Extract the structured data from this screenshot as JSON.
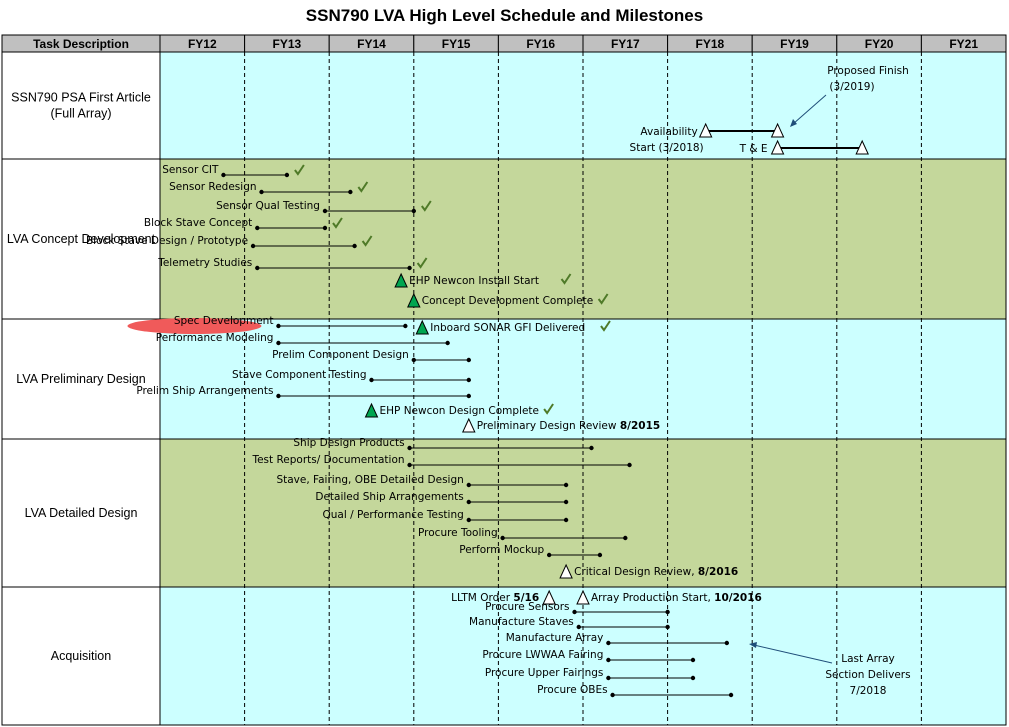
{
  "chart_data": {
    "type": "gantt",
    "title": "SSN790 LVA High Level Schedule and Milestones",
    "header_label": "Task Description",
    "periods": [
      "FY12",
      "FY13",
      "FY14",
      "FY15",
      "FY16",
      "FY17",
      "FY18",
      "FY19",
      "FY20",
      "FY21"
    ],
    "colors": {
      "cyan_band": "#ccffff",
      "green_band": "#c4d79b",
      "grid": "#000000",
      "check": "#4f7a28",
      "milestone_fill": "#00a550",
      "highlight": "#f05a5a",
      "arrow": "#1f4e79"
    },
    "sections": [
      {
        "name": "SSN790 PSA First Article (Full Array)",
        "lines": [
          "SSN790 PSA First Article",
          "(Full Array)"
        ],
        "band": "cyan"
      },
      {
        "name": "LVA Concept Development",
        "lines": [
          "LVA Concept Development"
        ],
        "band": "green"
      },
      {
        "name": "LVA Preliminary Design",
        "lines": [
          "LVA Preliminary Design"
        ],
        "band": "cyan"
      },
      {
        "name": "LVA Detailed Design",
        "lines": [
          "LVA Detailed Design"
        ],
        "band": "green"
      },
      {
        "name": "Acquisition",
        "lines": [
          "Acquisition"
        ],
        "band": "cyan"
      }
    ],
    "tasks": [
      {
        "section": 0,
        "label": "Availability",
        "label2": "Start (3/2018)",
        "start": 2018.45,
        "end": 2019.3,
        "end_marker": "open-triangle",
        "start_marker": "open-triangle",
        "labelSide": "left"
      },
      {
        "section": 0,
        "label": "T & E",
        "start": 2019.3,
        "end": 2020.3,
        "end_marker": "open-triangle",
        "start_marker": "open-triangle",
        "labelSide": "left"
      },
      {
        "section": 1,
        "label": "Sensor CIT",
        "start": 2012.75,
        "end": 2013.5,
        "check": true
      },
      {
        "section": 1,
        "label": "Sensor Redesign",
        "start": 2013.2,
        "end": 2014.25,
        "check": true
      },
      {
        "section": 1,
        "label": "Sensor Qual Testing",
        "start": 2013.95,
        "end": 2015.0,
        "check": true
      },
      {
        "section": 1,
        "label": "Block Stave Concept",
        "start": 2013.15,
        "end": 2013.95,
        "check": true
      },
      {
        "section": 1,
        "label": "Block Stave Design / Prototype",
        "start": 2013.1,
        "end": 2014.3,
        "check": true
      },
      {
        "section": 1,
        "label": "Telemetry Studies",
        "start": 2013.15,
        "end": 2014.95,
        "check": true
      },
      {
        "section": 1,
        "label": "EHP Newcon Install Start",
        "milestone": 2014.85,
        "marker": "green-triangle",
        "check": true
      },
      {
        "section": 1,
        "label": "Concept Development Complete",
        "milestone": 2015.0,
        "marker": "green-triangle",
        "check": true
      },
      {
        "section": 2,
        "label": "Spec Development",
        "start": 2013.4,
        "end": 2014.9,
        "highlight": true
      },
      {
        "section": 2,
        "label": "Inboard SONAR GFI Delivered",
        "milestone": 2015.1,
        "marker": "green-triangle",
        "check": true
      },
      {
        "section": 2,
        "label": "Performance Modeling",
        "start": 2013.4,
        "end": 2015.4
      },
      {
        "section": 2,
        "label": "Prelim Component Design",
        "start": 2015.0,
        "end": 2015.65
      },
      {
        "section": 2,
        "label": "Stave Component Testing",
        "start": 2014.5,
        "end": 2015.65
      },
      {
        "section": 2,
        "label": "Prelim Ship Arrangements",
        "start": 2013.4,
        "end": 2015.65
      },
      {
        "section": 2,
        "label": "EHP Newcon Design Complete",
        "milestone": 2014.5,
        "marker": "green-triangle",
        "check": true
      },
      {
        "section": 2,
        "label": "Preliminary Design Review",
        "labelBold": "8/2015",
        "milestone": 2015.65,
        "marker": "open-triangle"
      },
      {
        "section": 3,
        "label": "Ship Design Products",
        "start": 2014.95,
        "end": 2017.1
      },
      {
        "section": 3,
        "label": "Test Reports/ Documentation",
        "start": 2014.95,
        "end": 2017.55
      },
      {
        "section": 3,
        "label": "Stave, Fairing, OBE  Detailed Design",
        "start": 2015.65,
        "end": 2016.8
      },
      {
        "section": 3,
        "label": "Detailed Ship Arrangements",
        "start": 2015.65,
        "end": 2016.8
      },
      {
        "section": 3,
        "label": "Qual / Performance Testing",
        "start": 2015.65,
        "end": 2016.8
      },
      {
        "section": 3,
        "label": "Procure Tooling",
        "start": 2016.05,
        "end": 2017.5
      },
      {
        "section": 3,
        "label": "Perform Mockup",
        "start": 2016.6,
        "end": 2017.2
      },
      {
        "section": 3,
        "label": "Critical Design Review,",
        "labelBold": "8/2016",
        "milestone": 2016.8,
        "marker": "open-triangle"
      },
      {
        "section": 4,
        "label": "LLTM Order",
        "labelBold": "5/16",
        "milestone": 2016.6,
        "marker": "open-triangle"
      },
      {
        "section": 4,
        "label": "Array Production Start,",
        "labelBold": "10/2016",
        "milestone": 2017.0,
        "marker": "open-triangle",
        "labelSide": "right"
      },
      {
        "section": 4,
        "label": "Procure Sensors",
        "start": 2016.9,
        "end": 2018.0
      },
      {
        "section": 4,
        "label": "Manufacture Staves",
        "start": 2016.95,
        "end": 2018.0
      },
      {
        "section": 4,
        "label": "Manufacture Array",
        "start": 2017.3,
        "end": 2018.7
      },
      {
        "section": 4,
        "label": "Procure LWWAA Fairing",
        "start": 2017.3,
        "end": 2018.3
      },
      {
        "section": 4,
        "label": "Procure Upper Fairings",
        "start": 2017.3,
        "end": 2018.3
      },
      {
        "section": 4,
        "label": "Procure OBEs",
        "start": 2017.35,
        "end": 2018.75
      }
    ],
    "annotations": [
      {
        "lines": [
          "Proposed Finish",
          "(3/2019)"
        ],
        "points_to": "2019 finish"
      },
      {
        "lines": [
          "Last Array",
          "Section Delivers",
          "7/2018"
        ],
        "points_to": "Manufacture Array end"
      }
    ]
  }
}
